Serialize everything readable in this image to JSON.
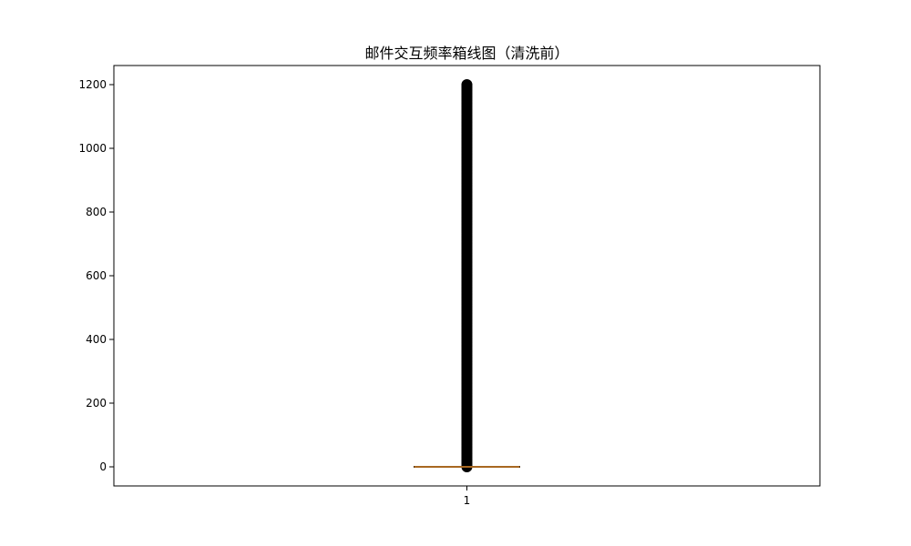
{
  "chart_data": {
    "type": "box",
    "title": "邮件交互频率箱线图（清洗前）",
    "xlabel": "",
    "ylabel": "",
    "categories": [
      "1"
    ],
    "x_tick_labels": [
      "1"
    ],
    "y_ticks": [
      0,
      200,
      400,
      600,
      800,
      1000,
      1200
    ],
    "ylim": [
      -60,
      1260
    ],
    "grid": false,
    "box": {
      "min": 0,
      "q1": 0,
      "median": 0,
      "q3": 0,
      "whisker_low": 0,
      "whisker_high": 0
    },
    "outlier_range": [
      0,
      1200
    ],
    "outlier_color": "#000000",
    "median_color": "#e08a2c",
    "box_color": "#000000"
  }
}
